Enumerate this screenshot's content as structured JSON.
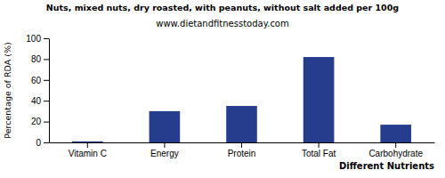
{
  "chart_data": {
    "type": "bar",
    "title": "Nuts, mixed nuts, dry roasted, with peanuts, without salt added per 100g",
    "subtitle": "www.dietandfitnesstoday.com",
    "x_label": "Different Nutrients",
    "y_label": "Percentage of RDA (%)",
    "categories": [
      "Vitamin C",
      "Energy",
      "Protein",
      "Total Fat",
      "Carbohydrate"
    ],
    "values": [
      1,
      30,
      35,
      82,
      17
    ],
    "color": "#263c8c",
    "ylim": [
      0,
      100
    ],
    "yticks": [
      0,
      20,
      40,
      60,
      80,
      100
    ],
    "grid": false
  }
}
